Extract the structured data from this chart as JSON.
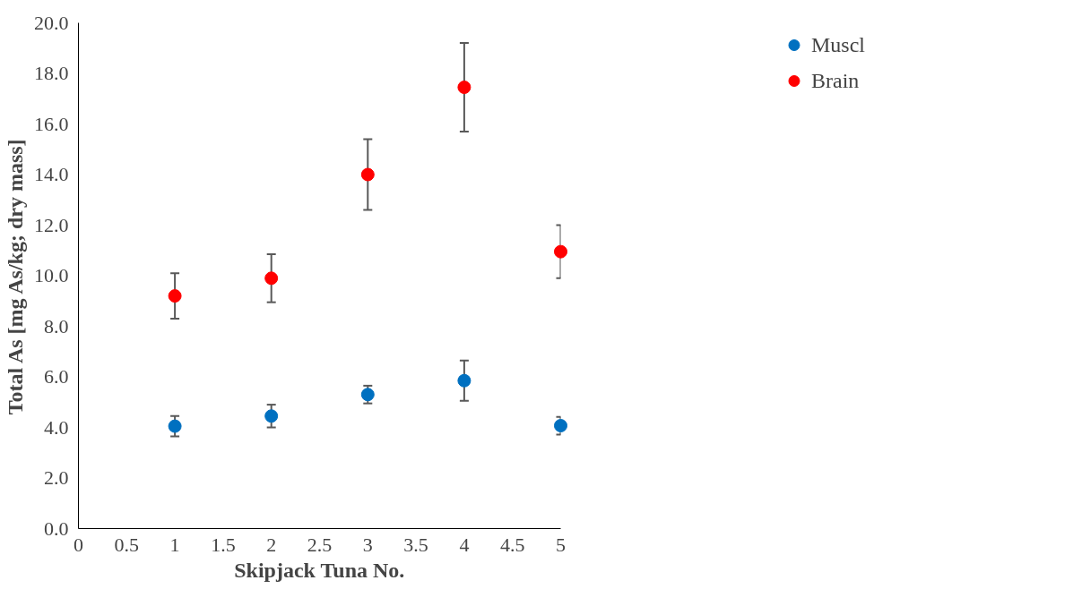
{
  "chart_data": {
    "type": "scatter",
    "xlabel": "Skipjack Tuna No.",
    "ylabel": "Total As [mg As/kg; dry mass]",
    "xlim": [
      0,
      5
    ],
    "xticks": [
      0,
      0.5,
      1,
      1.5,
      2,
      2.5,
      3,
      3.5,
      4,
      4.5,
      5
    ],
    "ylim": [
      0,
      20
    ],
    "yticks": [
      {
        "value": 0,
        "label": "0.0"
      },
      {
        "value": 2,
        "label": "2.0"
      },
      {
        "value": 4,
        "label": "4.0"
      },
      {
        "value": 6,
        "label": "6.0"
      },
      {
        "value": 8,
        "label": "8.0"
      },
      {
        "value": 10,
        "label": "10.0"
      },
      {
        "value": 12,
        "label": "12.0"
      },
      {
        "value": 14,
        "label": "14.0"
      },
      {
        "value": 16,
        "label": "16.0"
      },
      {
        "value": 18,
        "label": "18.0"
      },
      {
        "value": 20,
        "label": "20.0"
      }
    ],
    "grid": false,
    "legend": "top right",
    "marker": "circle",
    "series": [
      {
        "name": "Muscl",
        "color": "#0070c0",
        "x": [
          1,
          2,
          3,
          4,
          5
        ],
        "values": [
          4.05,
          4.45,
          5.3,
          5.85,
          4.07
        ],
        "errors": [
          0.4,
          0.45,
          0.35,
          0.8,
          0.35
        ]
      },
      {
        "name": "Brain",
        "color": "#ff0000",
        "x": [
          1,
          2,
          3,
          4,
          5
        ],
        "values": [
          9.2,
          9.9,
          14.0,
          17.45,
          10.95
        ],
        "errors": [
          0.9,
          0.95,
          1.4,
          1.75,
          1.05
        ]
      }
    ]
  }
}
